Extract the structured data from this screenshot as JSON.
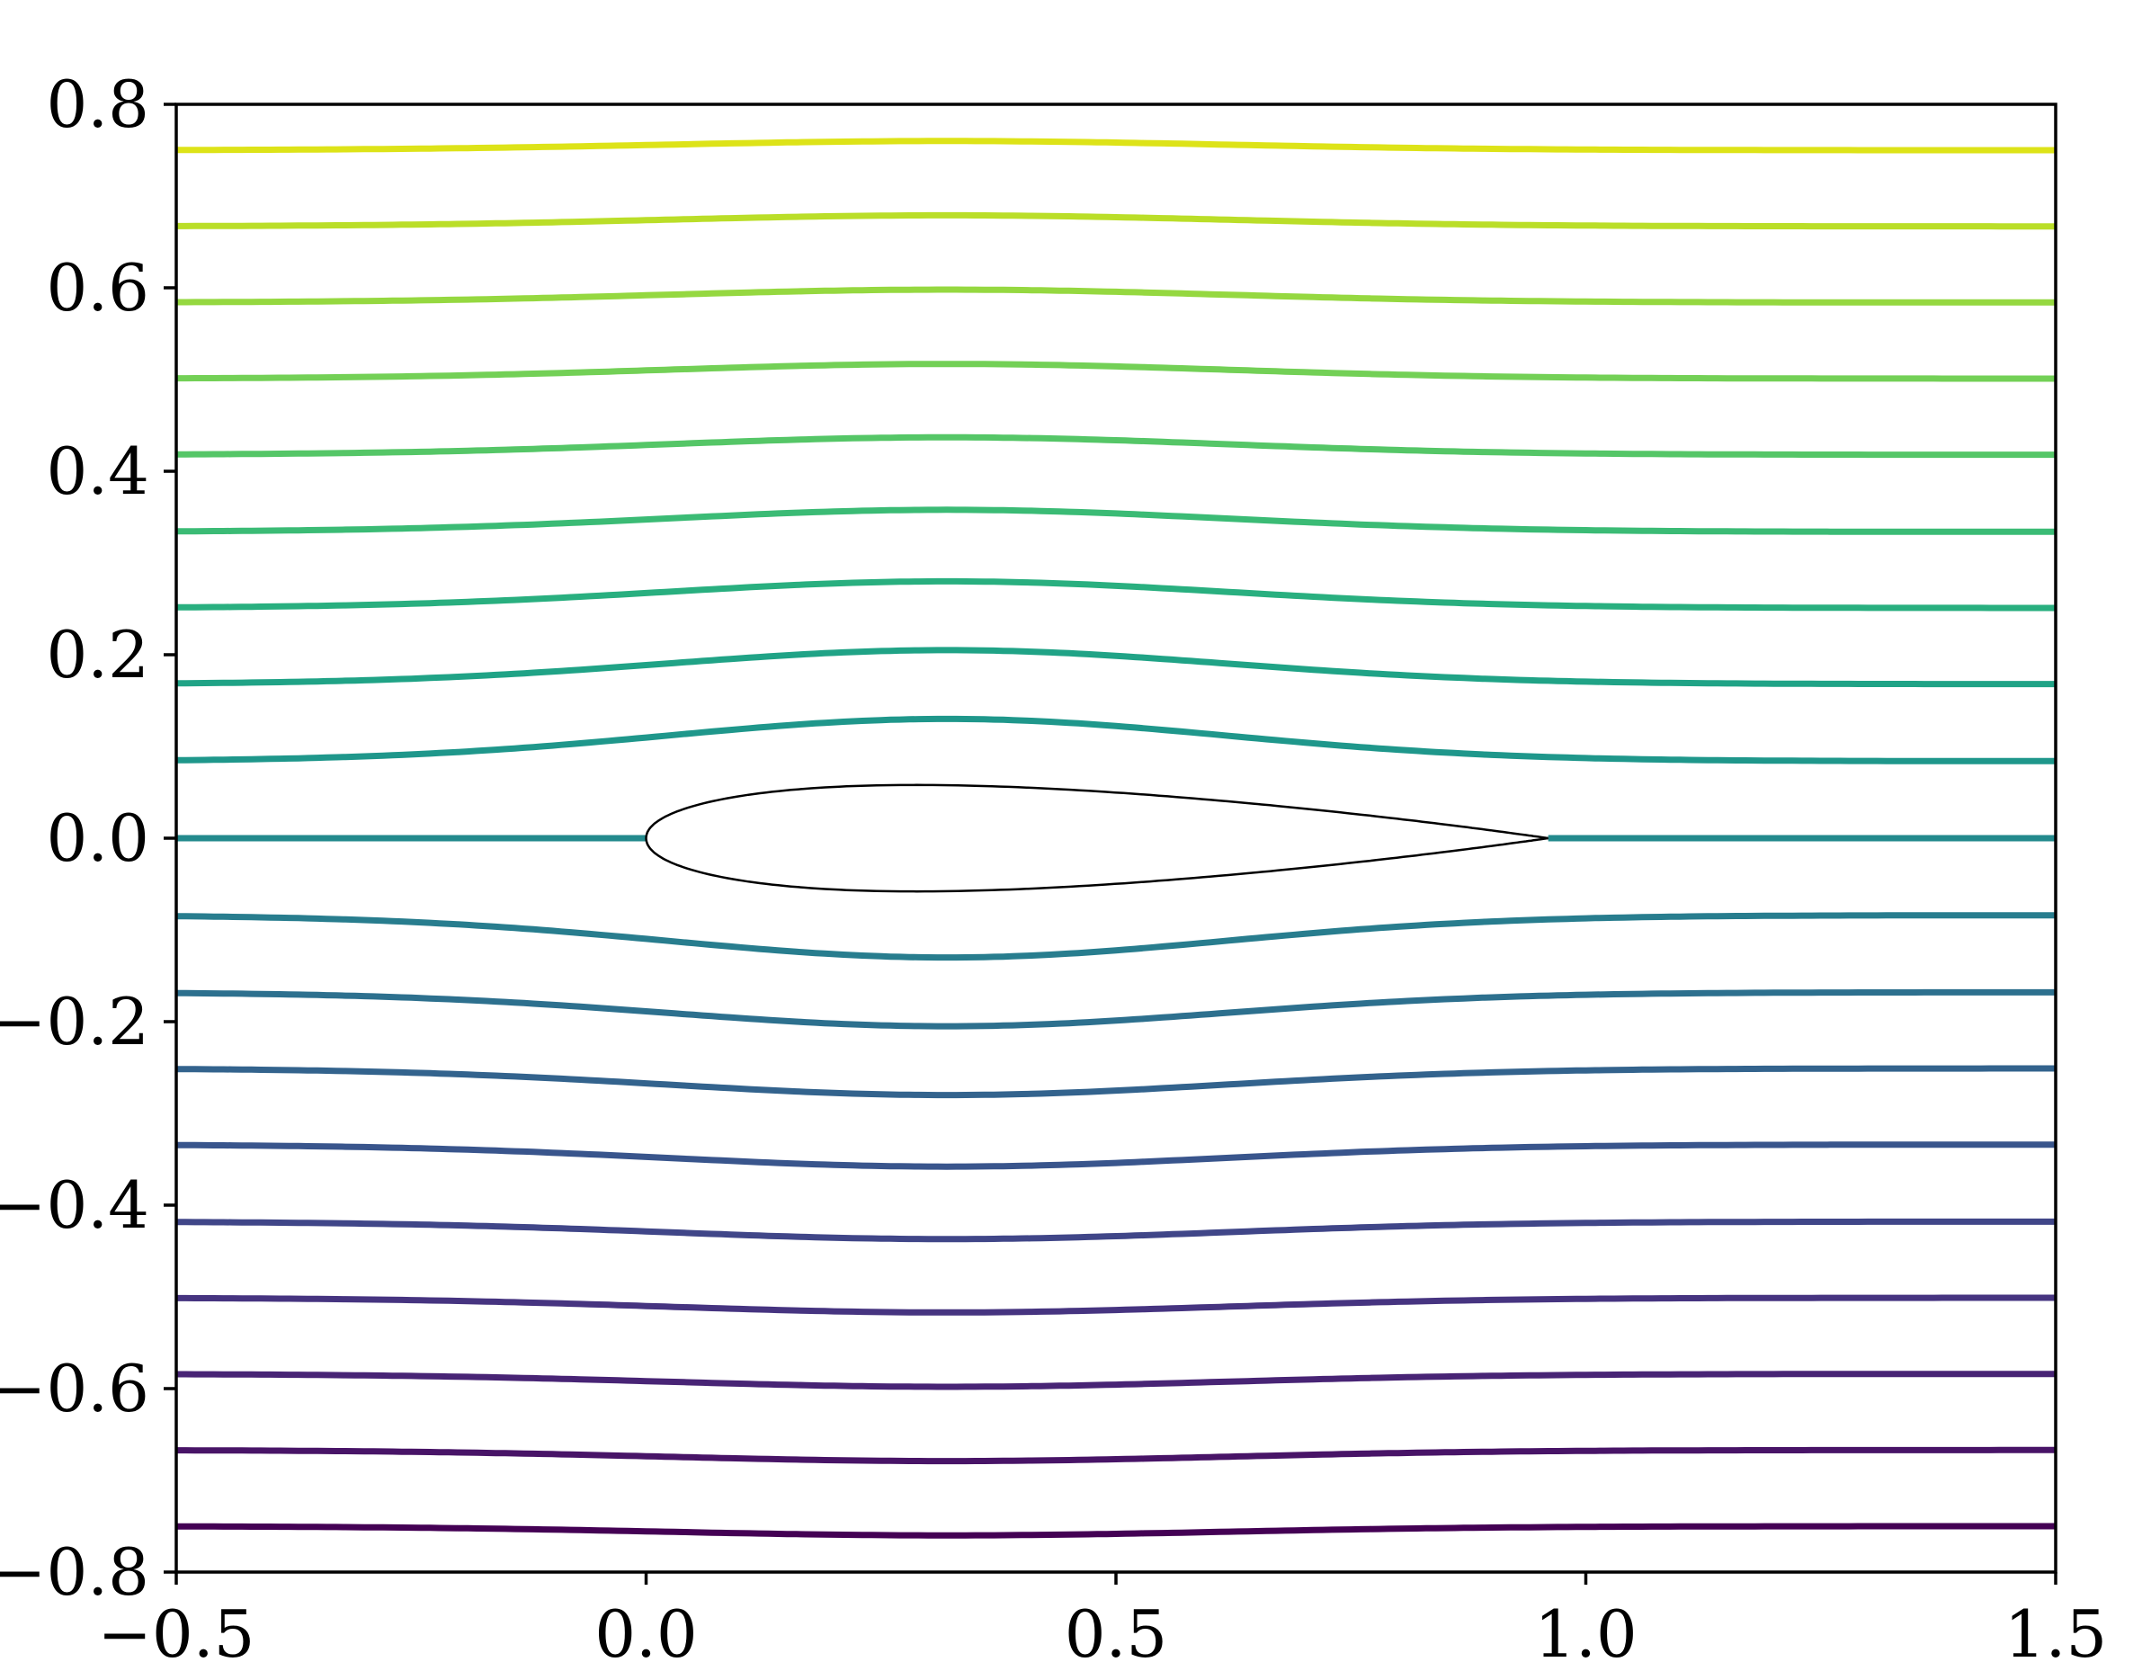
{
  "chart_data": {
    "type": "line",
    "title": "",
    "xlabel": "",
    "ylabel": "",
    "xlim": [
      -0.5,
      1.5
    ],
    "ylim": [
      -0.8,
      0.8
    ],
    "x_ticks": [
      -0.5,
      0.0,
      0.5,
      1.0,
      1.5
    ],
    "x_tick_labels": [
      "−0.5",
      "0.0",
      "0.5",
      "1.0",
      "1.5"
    ],
    "y_ticks": [
      -0.8,
      -0.6,
      -0.4,
      -0.2,
      0.0,
      0.2,
      0.4,
      0.6,
      0.8
    ],
    "y_tick_labels": [
      "−0.8",
      "−0.6",
      "−0.4",
      "−0.2",
      "0.0",
      "0.2",
      "0.4",
      "0.6",
      "0.8"
    ],
    "grid": false,
    "legend": "none",
    "colormap": "viridis",
    "streamlines": [
      {
        "far_field_y": 0.75,
        "max_y": 0.76,
        "color": "#dde318"
      },
      {
        "far_field_y": 0.667,
        "max_y": 0.679,
        "color": "#bade28"
      },
      {
        "far_field_y": 0.584,
        "max_y": 0.598,
        "color": "#95d840"
      },
      {
        "far_field_y": 0.501,
        "max_y": 0.517,
        "color": "#73d056"
      },
      {
        "far_field_y": 0.418,
        "max_y": 0.437,
        "color": "#55c667"
      },
      {
        "far_field_y": 0.334,
        "max_y": 0.358,
        "color": "#3bbb75"
      },
      {
        "far_field_y": 0.251,
        "max_y": 0.28,
        "color": "#29af7f"
      },
      {
        "far_field_y": 0.168,
        "max_y": 0.205,
        "color": "#20a386"
      },
      {
        "far_field_y": 0.084,
        "max_y": 0.13,
        "color": "#1f978b"
      },
      {
        "far_field_y": 0.0,
        "max_y": 0.0,
        "color": "#238a8d",
        "stagnation": true
      },
      {
        "far_field_y": -0.084,
        "max_y": -0.13,
        "color": "#287d8e"
      },
      {
        "far_field_y": -0.168,
        "max_y": -0.205,
        "color": "#2d708e"
      },
      {
        "far_field_y": -0.251,
        "max_y": -0.28,
        "color": "#33638d"
      },
      {
        "far_field_y": -0.334,
        "max_y": -0.358,
        "color": "#39558c"
      },
      {
        "far_field_y": -0.418,
        "max_y": -0.437,
        "color": "#404688"
      },
      {
        "far_field_y": -0.501,
        "max_y": -0.517,
        "color": "#463480"
      },
      {
        "far_field_y": -0.584,
        "max_y": -0.598,
        "color": "#482475"
      },
      {
        "far_field_y": -0.667,
        "max_y": -0.679,
        "color": "#481467"
      },
      {
        "far_field_y": -0.75,
        "max_y": -0.76,
        "color": "#440154"
      }
    ],
    "airfoil": {
      "leading_edge_x": 0.0,
      "trailing_edge_x": 0.96,
      "max_half_thickness": 0.058,
      "max_thickness_x": 0.26,
      "color": "#000000"
    }
  }
}
